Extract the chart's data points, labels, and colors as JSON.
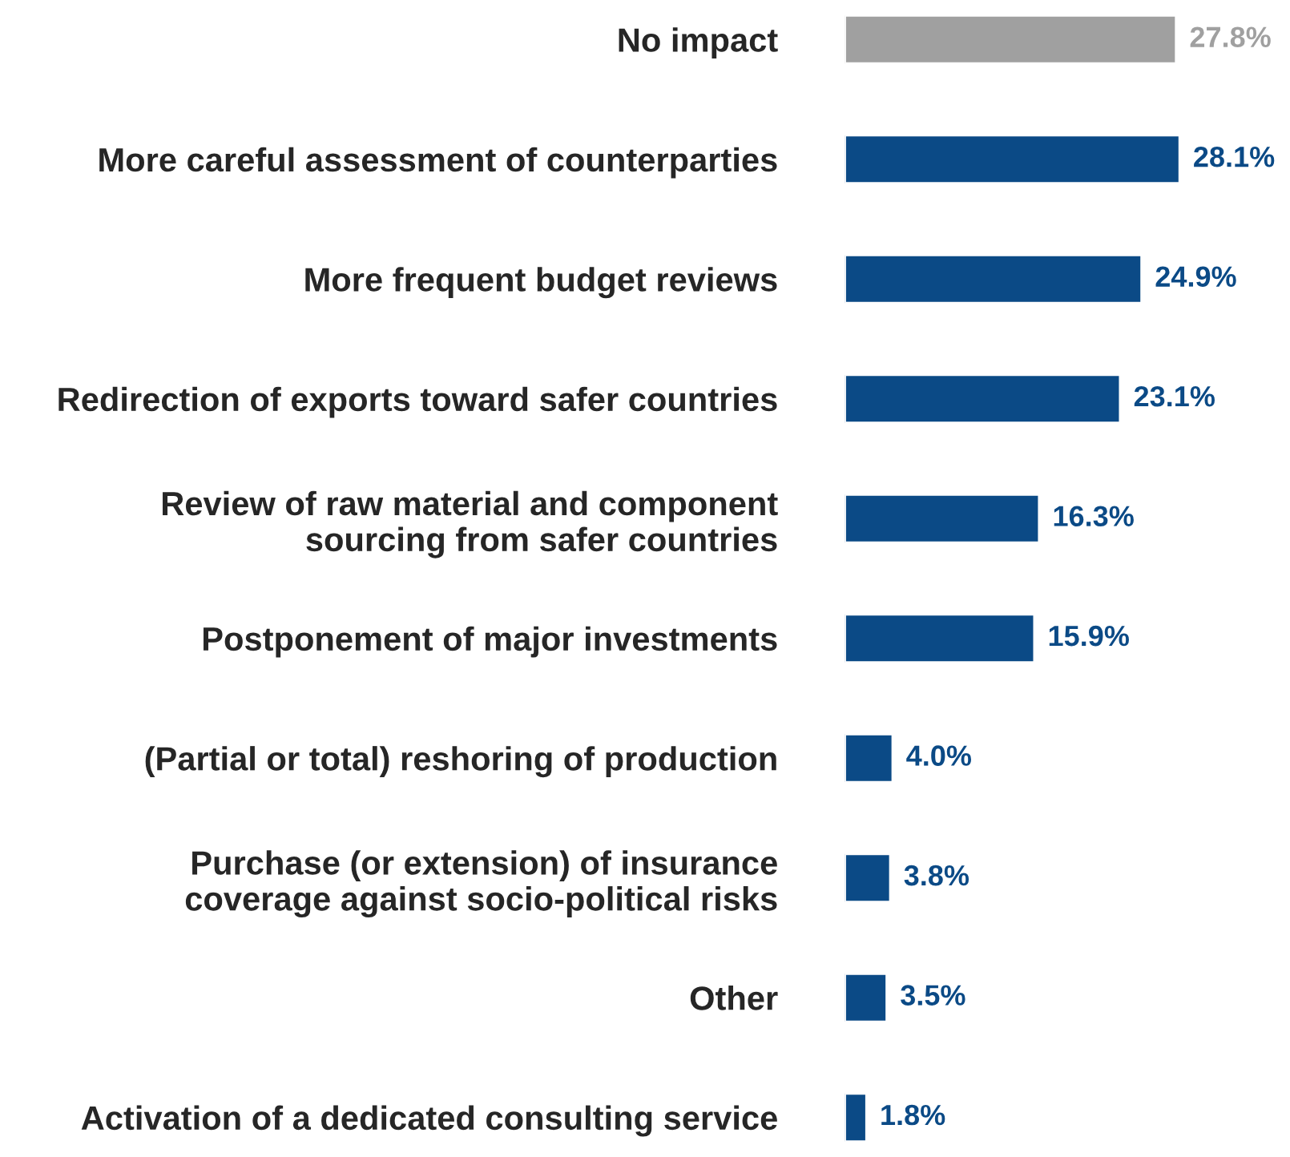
{
  "chart_data": {
    "type": "bar",
    "orientation": "horizontal",
    "categories": [
      "No impact",
      "More careful assessment of counterparties",
      "More frequent budget reviews",
      "Redirection of exports toward safer countries",
      "Review of raw material and component\nsourcing from safer countries",
      "Postponement of major investments",
      "(Partial or total) reshoring of production",
      "Purchase (or extension) of insurance\ncoverage against socio-political risks",
      "Other",
      "Activation of a dedicated consulting service"
    ],
    "values": [
      27.8,
      28.1,
      24.9,
      23.1,
      16.3,
      15.9,
      4.0,
      3.8,
      3.5,
      1.8
    ],
    "value_labels": [
      "27.8%",
      "28.1%",
      "24.9%",
      "23.1%",
      "16.3%",
      "15.9%",
      "4.0%",
      "3.8%",
      "3.5%",
      "1.8%"
    ],
    "colors": [
      "#a0a0a0",
      "#0b4a86",
      "#0b4a86",
      "#0b4a86",
      "#0b4a86",
      "#0b4a86",
      "#0b4a86",
      "#0b4a86",
      "#0b4a86",
      "#0b4a86"
    ]
  }
}
